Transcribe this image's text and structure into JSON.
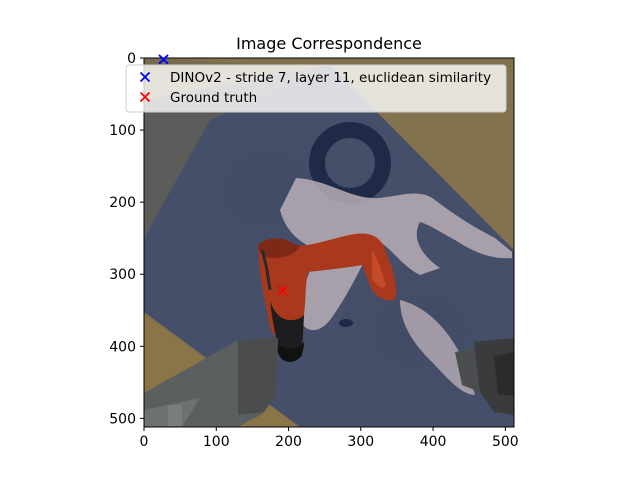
{
  "chart_data": {
    "type": "scatter",
    "title": "Image Correspondence",
    "xlabel": "",
    "ylabel": "",
    "xlim": [
      0,
      512
    ],
    "ylim": [
      512,
      0
    ],
    "y_inverted": true,
    "xticks": [
      0,
      100,
      200,
      300,
      400,
      500
    ],
    "yticks": [
      0,
      100,
      200,
      300,
      400,
      500
    ],
    "grid": false,
    "legend_position": "top-center",
    "background": "image: robot gripper holding an orange and black power drill over a dark blue table with beige shapes",
    "series": [
      {
        "name": "DINOv2 - stride 7, layer 11, euclidean similarity",
        "marker": "x",
        "color": "#0000ff",
        "points": [
          {
            "x": 27,
            "y": 2
          }
        ]
      },
      {
        "name": "Ground truth",
        "marker": "x",
        "color": "#ff0000",
        "points": [
          {
            "x": 192,
            "y": 323
          }
        ]
      }
    ]
  }
}
